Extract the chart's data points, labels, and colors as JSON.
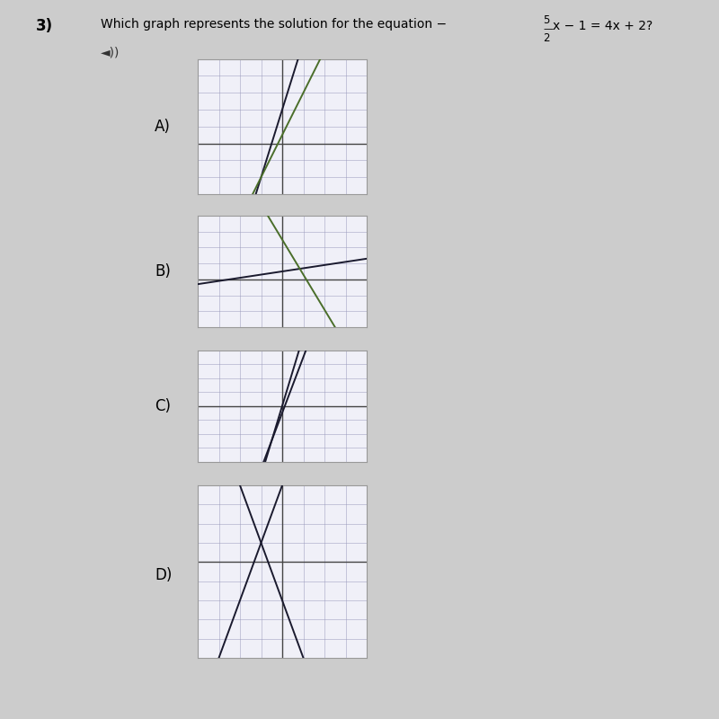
{
  "background_color": "#cccccc",
  "graph_box_color": "#f0f0f8",
  "axis_color": "#444444",
  "grid_color": "#9999bb",
  "graphs": [
    {
      "label": "A)",
      "line1_slope": 4,
      "line1_intercept": 2,
      "line1_color": "#1a1a2e",
      "line2_slope": 2.5,
      "line2_intercept": 0.5,
      "line2_color": "#4a6e2a",
      "xlim": [
        -4,
        4
      ],
      "ylim": [
        -3,
        5
      ],
      "xgrid_step": 1,
      "ygrid_step": 1
    },
    {
      "label": "B)",
      "line1_slope": 0.2,
      "line1_intercept": 0.5,
      "line1_color": "#1a1a2e",
      "line2_slope": -2.2,
      "line2_intercept": 2.5,
      "line2_color": "#4a6e2a",
      "xlim": [
        -4,
        4
      ],
      "ylim": [
        -3,
        4
      ],
      "xgrid_step": 1,
      "ygrid_step": 1
    },
    {
      "label": "C)",
      "line1_slope": 5,
      "line1_intercept": 0,
      "line1_color": "#1a1a2e",
      "line2_slope": 4,
      "line2_intercept": -0.5,
      "line2_color": "#1a1a2e",
      "xlim": [
        -4,
        4
      ],
      "ylim": [
        -4,
        4
      ],
      "xgrid_step": 1,
      "ygrid_step": 1
    },
    {
      "label": "D)",
      "line1_slope": 3,
      "line1_intercept": 4,
      "line1_color": "#1a1a2e",
      "line2_slope": -3,
      "line2_intercept": -2,
      "line2_color": "#1a1a2e",
      "xlim": [
        -4,
        4
      ],
      "ylim": [
        -5,
        4
      ],
      "xgrid_step": 1,
      "ygrid_step": 1
    }
  ],
  "label_fontsize": 12,
  "question_fontsize": 10,
  "number_fontsize": 12
}
